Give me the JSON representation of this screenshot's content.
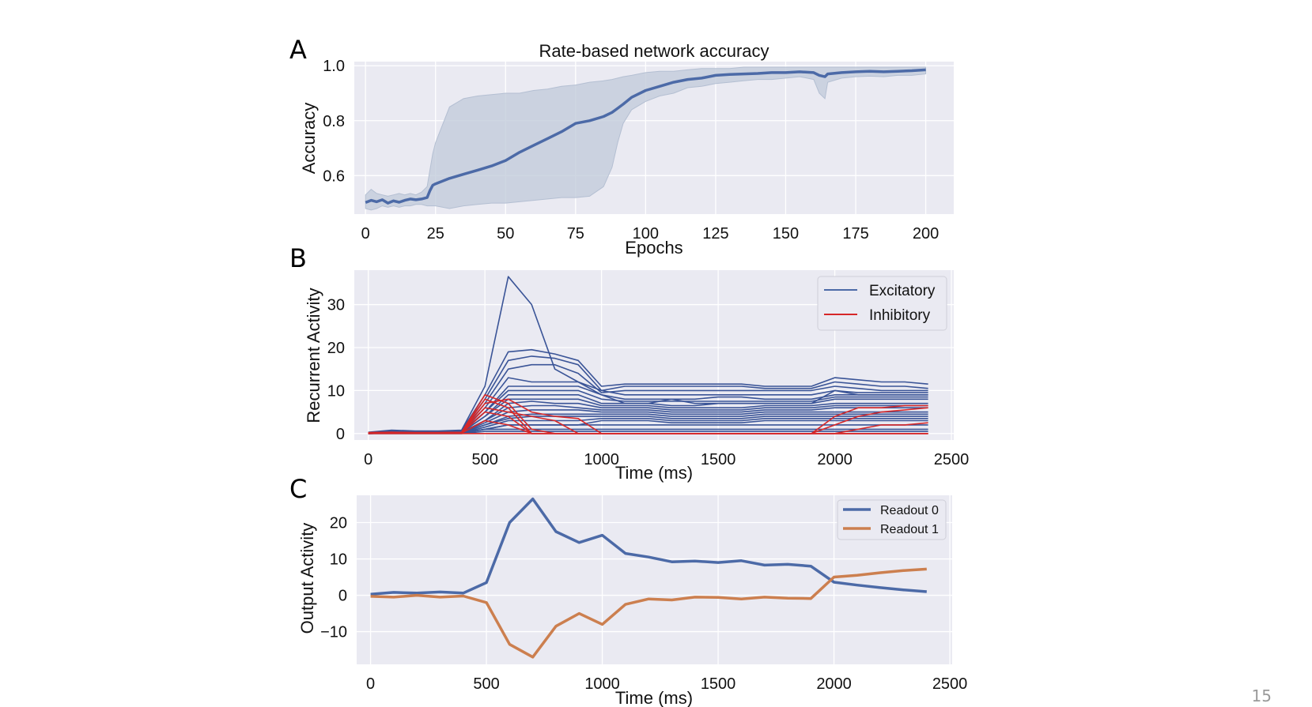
{
  "page_number": "15",
  "colors": {
    "background": "#eaeaf2",
    "grid": "#ffffff",
    "blue": "#4c6aa7",
    "red": "#d62728",
    "orange": "#cc7f4f",
    "band": "#c3ccdb"
  },
  "chart_data": [
    {
      "panel": "A",
      "type": "line",
      "title": "Rate-based network accuracy",
      "xlabel": "Epochs",
      "ylabel": "Accuracy",
      "xlim": [
        -4,
        210
      ],
      "ylim": [
        0.46,
        1.015
      ],
      "xticks": [
        0,
        25,
        50,
        75,
        100,
        125,
        150,
        175,
        200
      ],
      "yticks": [
        0.6,
        0.8,
        1.0
      ],
      "ytick_labels": [
        "0.6",
        "0.8",
        "1.0"
      ],
      "grid": true,
      "series": [
        {
          "x": [
            0,
            2,
            4,
            6,
            8,
            10,
            12,
            14,
            16,
            18,
            20,
            22,
            23,
            24,
            25,
            30,
            35,
            40,
            45,
            50,
            55,
            60,
            65,
            70,
            75,
            80,
            85,
            88,
            90,
            92,
            95,
            100,
            105,
            110,
            115,
            120,
            125,
            130,
            135,
            140,
            145,
            150,
            155,
            160,
            162,
            164,
            165,
            170,
            175,
            180,
            185,
            190,
            195,
            200
          ],
          "y": [
            0.502,
            0.51,
            0.505,
            0.512,
            0.5,
            0.508,
            0.503,
            0.51,
            0.515,
            0.512,
            0.515,
            0.52,
            0.545,
            0.565,
            0.57,
            0.59,
            0.605,
            0.62,
            0.635,
            0.655,
            0.685,
            0.71,
            0.735,
            0.76,
            0.79,
            0.8,
            0.815,
            0.83,
            0.845,
            0.86,
            0.885,
            0.91,
            0.925,
            0.94,
            0.95,
            0.955,
            0.965,
            0.968,
            0.97,
            0.972,
            0.975,
            0.975,
            0.978,
            0.975,
            0.965,
            0.96,
            0.97,
            0.975,
            0.978,
            0.98,
            0.978,
            0.98,
            0.982,
            0.985
          ]
        }
      ],
      "band_upper": [
        0.53,
        0.55,
        0.535,
        0.53,
        0.525,
        0.53,
        0.535,
        0.53,
        0.535,
        0.53,
        0.54,
        0.56,
        0.62,
        0.68,
        0.72,
        0.85,
        0.88,
        0.89,
        0.895,
        0.9,
        0.9,
        0.91,
        0.915,
        0.925,
        0.93,
        0.94,
        0.945,
        0.95,
        0.955,
        0.96,
        0.965,
        0.975,
        0.98,
        0.98,
        0.985,
        0.99,
        0.99,
        0.99,
        0.995,
        0.995,
        0.995,
        0.995,
        0.995,
        0.995,
        0.995,
        0.995,
        0.995,
        0.995,
        0.995,
        0.995,
        0.995,
        0.995,
        0.995,
        0.995
      ],
      "band_lower": [
        0.48,
        0.475,
        0.48,
        0.49,
        0.485,
        0.49,
        0.485,
        0.49,
        0.49,
        0.495,
        0.495,
        0.49,
        0.49,
        0.49,
        0.49,
        0.48,
        0.49,
        0.495,
        0.5,
        0.5,
        0.505,
        0.51,
        0.515,
        0.52,
        0.52,
        0.525,
        0.56,
        0.63,
        0.72,
        0.79,
        0.84,
        0.87,
        0.89,
        0.9,
        0.92,
        0.925,
        0.935,
        0.94,
        0.945,
        0.95,
        0.95,
        0.955,
        0.96,
        0.95,
        0.9,
        0.88,
        0.94,
        0.955,
        0.96,
        0.962,
        0.96,
        0.965,
        0.965,
        0.97
      ]
    },
    {
      "panel": "B",
      "type": "line",
      "xlabel": "Time (ms)",
      "ylabel": "Recurrent Activity",
      "xlim": [
        -60,
        2510
      ],
      "ylim": [
        -1.5,
        38
      ],
      "xticks": [
        0,
        500,
        1000,
        1500,
        2000,
        2500
      ],
      "yticks": [
        0,
        10,
        20,
        30
      ],
      "grid": true,
      "legend": {
        "placement": "top-right",
        "entries": [
          {
            "name": "Excitatory",
            "color": "#4c6aa7"
          },
          {
            "name": "Inhibitory",
            "color": "#d62728"
          }
        ]
      },
      "x": [
        0,
        100,
        200,
        300,
        400,
        500,
        600,
        700,
        800,
        900,
        1000,
        1100,
        1200,
        1300,
        1400,
        1500,
        1600,
        1700,
        1800,
        1900,
        2000,
        2100,
        2200,
        2300,
        2400
      ],
      "excitatory": [
        [
          0.3,
          0.8,
          0.6,
          0.6,
          0.8,
          11,
          36.5,
          30,
          15,
          12,
          9,
          7,
          7,
          8,
          7,
          7,
          7,
          7,
          7,
          7,
          10,
          9,
          9,
          9,
          9
        ],
        [
          0.2,
          0.7,
          0.5,
          0.5,
          0.7,
          9,
          19,
          19.5,
          18.5,
          17,
          11,
          11.5,
          11.5,
          11.5,
          11.5,
          11.5,
          11.5,
          11,
          11,
          11,
          13,
          12.5,
          12,
          12,
          11.5
        ],
        [
          0.2,
          0.6,
          0.5,
          0.5,
          0.6,
          8,
          17,
          18,
          17.5,
          16,
          10,
          11,
          11,
          11,
          11,
          11,
          11,
          10.5,
          10.5,
          10.5,
          12,
          11.5,
          11,
          11,
          10.5
        ],
        [
          0.1,
          0.5,
          0.4,
          0.4,
          0.5,
          7,
          15,
          16,
          16,
          14,
          9.5,
          10,
          10,
          10,
          10,
          10,
          10,
          10,
          10,
          10,
          11,
          10.5,
          10,
          10,
          10
        ],
        [
          0.1,
          0.5,
          0.4,
          0.4,
          0.5,
          6,
          13,
          12,
          12,
          12,
          10,
          9,
          9,
          9,
          9,
          9,
          9,
          9,
          9,
          9,
          10,
          9.5,
          9.5,
          9.5,
          9.5
        ],
        [
          0.1,
          0.4,
          0.3,
          0.3,
          0.4,
          5,
          11,
          11,
          11,
          11,
          9,
          8,
          8,
          8,
          8,
          8.5,
          8.5,
          8,
          8,
          8,
          9,
          9,
          9,
          9,
          9
        ],
        [
          0.1,
          0.4,
          0.3,
          0.3,
          0.4,
          5,
          10,
          10,
          10,
          10,
          8,
          7.5,
          7.5,
          7.5,
          7.5,
          7.5,
          7.5,
          7.5,
          7.5,
          7.5,
          8.5,
          8.5,
          8.5,
          8.5,
          8.5
        ],
        [
          0.1,
          0.3,
          0.3,
          0.3,
          0.3,
          4,
          9,
          9,
          9,
          9,
          7,
          7,
          7,
          6.5,
          6.5,
          7,
          7,
          7,
          7,
          7,
          8,
          8,
          8,
          8,
          8
        ],
        [
          0.0,
          0.3,
          0.2,
          0.2,
          0.3,
          4,
          8,
          8,
          8,
          8,
          6.5,
          6.5,
          6.5,
          6,
          6,
          6,
          6,
          6.5,
          6.5,
          6.5,
          7,
          7,
          7,
          7,
          7
        ],
        [
          0.0,
          0.3,
          0.2,
          0.2,
          0.3,
          3,
          7,
          7.5,
          7,
          7,
          6,
          6,
          6,
          5.5,
          5.5,
          5.5,
          5.5,
          6,
          6,
          6,
          6.5,
          6.5,
          6.5,
          6.5,
          6.5
        ],
        [
          0.0,
          0.2,
          0.2,
          0.2,
          0.2,
          3,
          6,
          6.5,
          6.5,
          6,
          5.5,
          5.5,
          5.5,
          5,
          5,
          5,
          5,
          5.5,
          5.5,
          5.5,
          6,
          6,
          6,
          6,
          6
        ],
        [
          0.0,
          0.2,
          0.2,
          0.2,
          0.2,
          2.5,
          5,
          5.5,
          5.5,
          5.5,
          5,
          5,
          5,
          4.5,
          4.5,
          4.5,
          4.5,
          5,
          5,
          5,
          5,
          5,
          5,
          5,
          5
        ],
        [
          0.0,
          0.2,
          0.1,
          0.1,
          0.2,
          2,
          4,
          4.5,
          4.5,
          4.5,
          4.5,
          4.5,
          4.5,
          4,
          4,
          4,
          4,
          4.5,
          4.5,
          4.5,
          4.5,
          4.5,
          4.5,
          4.5,
          4.5
        ],
        [
          0.0,
          0.1,
          0.1,
          0.1,
          0.1,
          2,
          3.5,
          4,
          4,
          4,
          4,
          4,
          4,
          3.5,
          3.5,
          3.5,
          3.5,
          4,
          4,
          4,
          4,
          4,
          4,
          4,
          4
        ],
        [
          0.0,
          0.1,
          0.1,
          0.1,
          0.1,
          1.5,
          3,
          3,
          3,
          3,
          3.5,
          3.5,
          3.5,
          3,
          3,
          3,
          3,
          3.5,
          3.5,
          3.5,
          3.5,
          3.5,
          3.5,
          3.5,
          3.5
        ],
        [
          0.0,
          0.1,
          0.1,
          0.1,
          0.1,
          1,
          2,
          2,
          2,
          2,
          3,
          3,
          3,
          2.5,
          2.5,
          2.5,
          2.5,
          3,
          3,
          3,
          3,
          3,
          3,
          3,
          3
        ],
        [
          0.0,
          0.1,
          0.1,
          0.1,
          0.1,
          1,
          2,
          2,
          2,
          2,
          2,
          2,
          2,
          2,
          2,
          2,
          2,
          2,
          2,
          2,
          2,
          2,
          2,
          2,
          2
        ],
        [
          0.0,
          0.0,
          0.0,
          0.0,
          0.0,
          1,
          1,
          1,
          1,
          1,
          1,
          1,
          1,
          1,
          1,
          1,
          1,
          1,
          1,
          1,
          1,
          1,
          1,
          1,
          1
        ],
        [
          0.0,
          0.0,
          0.0,
          0.0,
          0.0,
          0.5,
          0.5,
          0.5,
          0.5,
          0.5,
          0.5,
          0.5,
          0.5,
          0.5,
          0.5,
          0.5,
          0.5,
          0.5,
          0.5,
          0.5,
          0.5,
          0.5,
          0.5,
          0.5,
          0.5
        ]
      ],
      "inhibitory": [
        [
          0.2,
          0.3,
          0.2,
          0.2,
          0.3,
          9,
          7,
          1,
          0,
          0,
          0,
          0,
          0,
          0,
          0,
          0,
          0,
          0,
          0,
          0,
          4,
          6,
          6,
          6.5,
          6.5
        ],
        [
          0.2,
          0.3,
          0.2,
          0.2,
          0.3,
          8,
          6,
          0,
          0,
          0,
          0,
          0,
          0,
          0,
          0,
          0,
          0,
          0,
          0,
          0,
          2,
          4,
          5,
          5.5,
          6
        ],
        [
          0.1,
          0.2,
          0.2,
          0.2,
          0.2,
          7,
          8,
          5,
          4,
          3.5,
          0,
          0,
          0,
          0,
          0,
          0,
          0,
          0,
          0,
          0,
          0,
          1,
          2,
          2,
          2.5
        ],
        [
          0.1,
          0.2,
          0.1,
          0.1,
          0.2,
          6,
          5,
          4,
          3,
          0,
          0,
          0,
          0,
          0,
          0,
          0,
          0,
          0,
          0,
          0,
          0,
          0,
          0,
          0,
          0
        ],
        [
          0.1,
          0.1,
          0.1,
          0.1,
          0.1,
          5,
          4,
          0,
          0,
          0,
          0,
          0,
          0,
          0,
          0,
          0,
          0,
          0,
          0,
          0,
          0,
          0,
          0,
          0,
          0
        ],
        [
          0.0,
          0.1,
          0.1,
          0.1,
          0.1,
          3,
          2,
          0,
          0,
          0,
          0,
          0,
          0,
          0,
          0,
          0,
          0,
          0,
          0,
          0,
          0,
          0,
          0,
          0,
          0
        ],
        [
          0.0,
          0.0,
          0.0,
          0.0,
          0.0,
          0,
          0,
          0,
          0,
          0,
          0,
          0,
          0,
          0,
          0,
          0,
          0,
          0,
          0,
          0,
          0,
          0,
          0,
          0,
          0
        ]
      ]
    },
    {
      "panel": "C",
      "type": "line",
      "xlabel": "Time (ms)",
      "ylabel": "Output Activity",
      "xlim": [
        -60,
        2510
      ],
      "ylim": [
        -19,
        27.5
      ],
      "xticks": [
        0,
        500,
        1000,
        1500,
        2000,
        2500
      ],
      "yticks": [
        -10,
        0,
        10,
        20
      ],
      "ytick_labels": [
        "−10",
        "0",
        "10",
        "20"
      ],
      "grid": true,
      "legend": {
        "placement": "top-right"
      },
      "x": [
        0,
        100,
        200,
        300,
        400,
        500,
        600,
        700,
        800,
        900,
        1000,
        1100,
        1200,
        1300,
        1400,
        1500,
        1600,
        1700,
        1800,
        1900,
        2000,
        2100,
        2200,
        2300,
        2400
      ],
      "series": [
        {
          "name": "Readout 0",
          "color": "#4c6aa7",
          "values": [
            0.3,
            0.8,
            0.6,
            0.9,
            0.6,
            3.5,
            20,
            26.5,
            17.5,
            14.5,
            16.5,
            11.5,
            10.5,
            9.2,
            9.4,
            9.0,
            9.5,
            8.3,
            8.5,
            8.0,
            3.6,
            2.8,
            2.1,
            1.5,
            1.0
          ]
        },
        {
          "name": "Readout 1",
          "color": "#cc7f4f",
          "values": [
            -0.3,
            -0.5,
            0.0,
            -0.5,
            -0.2,
            -2,
            -13.5,
            -17,
            -8.5,
            -5,
            -8,
            -2.5,
            -1,
            -1.3,
            -0.5,
            -0.6,
            -1,
            -0.5,
            -0.8,
            -0.9,
            5,
            5.5,
            6.2,
            6.8,
            7.2
          ]
        }
      ]
    }
  ]
}
